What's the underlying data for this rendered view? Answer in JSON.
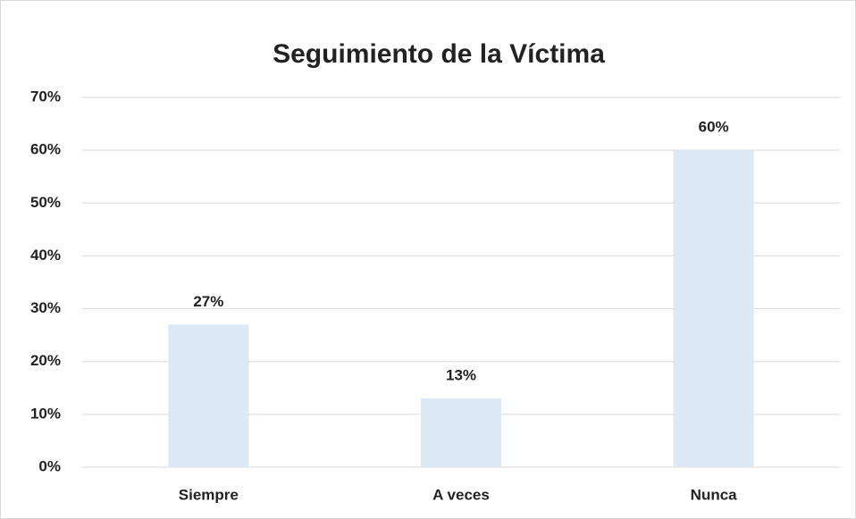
{
  "chart_data": {
    "type": "bar",
    "title": "Seguimiento de la Víctima",
    "categories": [
      "Siempre",
      "A veces",
      "Nunca"
    ],
    "values": [
      27,
      13,
      60
    ],
    "value_labels": [
      "27%",
      "13%",
      "60%"
    ],
    "color": "#dde8f5",
    "ylim": [
      0,
      70
    ],
    "yticks": [
      {
        "value": 0,
        "label": "0%"
      },
      {
        "value": 10,
        "label": "10%"
      },
      {
        "value": 20,
        "label": "20%"
      },
      {
        "value": 30,
        "label": "30%"
      },
      {
        "value": 40,
        "label": "40%"
      },
      {
        "value": 50,
        "label": "50%"
      },
      {
        "value": 60,
        "label": "60%"
      },
      {
        "value": 70,
        "label": "70%"
      }
    ],
    "grid": true
  }
}
